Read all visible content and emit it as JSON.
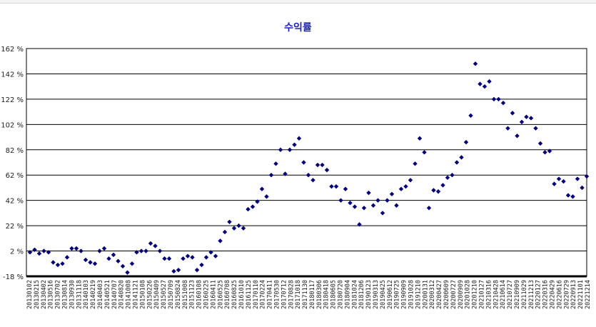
{
  "chart_data": {
    "type": "scatter",
    "title": "수익률",
    "xlabel": "",
    "ylabel": "",
    "ylim": [
      -18,
      162
    ],
    "grid": true,
    "legend": "none",
    "marker_color": "#000080",
    "title_color": "#1c1ccf",
    "y_ticks": [
      "162 %",
      "142 %",
      "122 %",
      "102 %",
      "82 %",
      "62 %",
      "42 %",
      "22 %",
      "2 %",
      "-18 %"
    ],
    "x_tick_labels": [
      "20130102",
      "20130215",
      "20130402",
      "20130516",
      "20130702",
      "20130814",
      "20130930",
      "20131118",
      "20140103",
      "20140219",
      "20140403",
      "20140521",
      "20140707",
      "20140820",
      "20141008",
      "20141121",
      "20150108",
      "20150226",
      "20150409",
      "20150527",
      "20150709",
      "20150824",
      "20151008",
      "20151123",
      "20160108",
      "20160225",
      "20160411",
      "20160525",
      "20160708",
      "20160825",
      "20161010",
      "20161125",
      "20170110",
      "20170224",
      "20170411",
      "20170530",
      "20170712",
      "20170828",
      "20171018",
      "20171130",
      "20180117",
      "20180306",
      "20180418",
      "20180605",
      "20180720",
      "20180904",
      "20181024",
      "20181206",
      "20190123",
      "20190313",
      "20190425",
      "20190612",
      "20190725",
      "20190909",
      "20191028",
      "20191210",
      "20200131",
      "20200312",
      "20200427",
      "20200609",
      "20200727",
      "20200909",
      "20201028",
      "20201210",
      "20210127",
      "20210316",
      "20210428",
      "20210614",
      "20210727",
      "20210909",
      "20211029",
      "20211213",
      "20220127",
      "20220316",
      "20220429",
      "20220616",
      "20220729",
      "20220913",
      "20221101",
      "20221214"
    ],
    "series": [
      {
        "values": [
          1,
          3,
          0,
          2,
          1,
          -7,
          -9,
          -8,
          -3,
          4,
          4,
          2,
          -5,
          -7,
          -8,
          2,
          4,
          -4,
          -1,
          -6,
          -10,
          -15,
          -8,
          1,
          2,
          2,
          8,
          6,
          2,
          -4,
          -4,
          -14,
          -13,
          -4,
          -2,
          -3,
          -13,
          -9,
          -3,
          1,
          -2,
          10,
          17,
          25,
          20,
          22,
          20,
          35,
          37,
          41,
          51,
          45,
          62,
          71,
          82,
          63,
          82,
          86,
          91,
          72,
          62,
          58,
          70,
          70,
          66,
          53,
          53,
          42,
          51,
          40,
          37,
          23,
          36,
          48,
          38,
          42,
          32,
          42,
          47,
          38,
          51,
          53,
          58,
          71,
          91,
          80,
          36,
          50,
          49,
          54,
          60,
          62,
          72,
          76,
          88,
          109,
          150,
          134,
          132,
          136,
          122,
          122,
          119,
          99,
          111,
          93,
          104,
          108,
          107,
          99,
          87,
          80,
          81,
          55,
          59,
          57,
          46,
          45,
          59,
          52,
          61
        ]
      }
    ]
  }
}
